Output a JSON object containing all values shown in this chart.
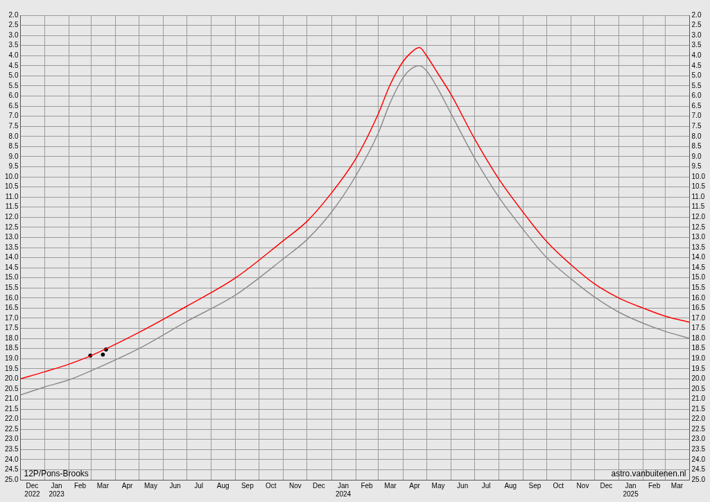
{
  "chart_data": {
    "type": "line",
    "annotations": [
      "12P/Pons-Brooks",
      "astro.vanbuitenen.nl"
    ],
    "xlim": [
      "2022-12-01",
      "2025-04-01"
    ],
    "xticks": [
      {
        "value": "2022-12-01",
        "label": null
      },
      {
        "value": "2022-12-16",
        "label": "Dec\n2022"
      },
      {
        "value": "2023-01-01",
        "label": null
      },
      {
        "value": "2023-01-16",
        "label": "Jan\n2023"
      },
      {
        "value": "2023-02-01",
        "label": null
      },
      {
        "value": "2023-02-15",
        "label": "Feb"
      },
      {
        "value": "2023-03-01",
        "label": null
      },
      {
        "value": "2023-03-16",
        "label": "Mar"
      },
      {
        "value": "2023-04-01",
        "label": null
      },
      {
        "value": "2023-04-16",
        "label": "Apr"
      },
      {
        "value": "2023-05-01",
        "label": null
      },
      {
        "value": "2023-05-16",
        "label": "May"
      },
      {
        "value": "2023-06-01",
        "label": null
      },
      {
        "value": "2023-06-16",
        "label": "Jun"
      },
      {
        "value": "2023-07-01",
        "label": null
      },
      {
        "value": "2023-07-16",
        "label": "Jul"
      },
      {
        "value": "2023-08-01",
        "label": null
      },
      {
        "value": "2023-08-16",
        "label": "Aug"
      },
      {
        "value": "2023-09-01",
        "label": null
      },
      {
        "value": "2023-09-16",
        "label": "Sep"
      },
      {
        "value": "2023-10-01",
        "label": null
      },
      {
        "value": "2023-10-16",
        "label": "Oct"
      },
      {
        "value": "2023-11-01",
        "label": null
      },
      {
        "value": "2023-11-16",
        "label": "Nov"
      },
      {
        "value": "2023-12-01",
        "label": null
      },
      {
        "value": "2023-12-16",
        "label": "Dec"
      },
      {
        "value": "2024-01-01",
        "label": null
      },
      {
        "value": "2024-01-16",
        "label": "Jan\n2024"
      },
      {
        "value": "2024-02-01",
        "label": null
      },
      {
        "value": "2024-02-15",
        "label": "Feb"
      },
      {
        "value": "2024-03-01",
        "label": null
      },
      {
        "value": "2024-03-16",
        "label": "Mar"
      },
      {
        "value": "2024-04-01",
        "label": null
      },
      {
        "value": "2024-04-16",
        "label": "Apr"
      },
      {
        "value": "2024-05-01",
        "label": null
      },
      {
        "value": "2024-05-16",
        "label": "May"
      },
      {
        "value": "2024-06-01",
        "label": null
      },
      {
        "value": "2024-06-16",
        "label": "Jun"
      },
      {
        "value": "2024-07-01",
        "label": null
      },
      {
        "value": "2024-07-16",
        "label": "Jul"
      },
      {
        "value": "2024-08-01",
        "label": null
      },
      {
        "value": "2024-08-16",
        "label": "Aug"
      },
      {
        "value": "2024-09-01",
        "label": null
      },
      {
        "value": "2024-09-16",
        "label": "Sep"
      },
      {
        "value": "2024-10-01",
        "label": null
      },
      {
        "value": "2024-10-16",
        "label": "Oct"
      },
      {
        "value": "2024-11-01",
        "label": null
      },
      {
        "value": "2024-11-16",
        "label": "Nov"
      },
      {
        "value": "2024-12-01",
        "label": null
      },
      {
        "value": "2024-12-16",
        "label": "Dec"
      },
      {
        "value": "2025-01-01",
        "label": null
      },
      {
        "value": "2025-01-16",
        "label": "Jan\n2025"
      },
      {
        "value": "2025-02-01",
        "label": null
      },
      {
        "value": "2025-02-15",
        "label": "Feb"
      },
      {
        "value": "2025-03-01",
        "label": null
      },
      {
        "value": "2025-03-16",
        "label": "Mar"
      },
      {
        "value": "2025-04-01",
        "label": null
      }
    ],
    "ylim": [
      25,
      2
    ],
    "yticks": [
      {
        "value": 2,
        "label": "2.0"
      },
      {
        "value": 2.5,
        "label": "2.5"
      },
      {
        "value": 3,
        "label": "3.0"
      },
      {
        "value": 3.5,
        "label": "3.5"
      },
      {
        "value": 4,
        "label": "4.0"
      },
      {
        "value": 4.5,
        "label": "4.5"
      },
      {
        "value": 5,
        "label": "5.0"
      },
      {
        "value": 5.5,
        "label": "5.5"
      },
      {
        "value": 6,
        "label": "6.0"
      },
      {
        "value": 6.5,
        "label": "6.5"
      },
      {
        "value": 7,
        "label": "7.0"
      },
      {
        "value": 7.5,
        "label": "7.5"
      },
      {
        "value": 8,
        "label": "8.0"
      },
      {
        "value": 8.5,
        "label": "8.5"
      },
      {
        "value": 9,
        "label": "9.0"
      },
      {
        "value": 9.5,
        "label": "9.5"
      },
      {
        "value": 10,
        "label": "10.0"
      },
      {
        "value": 10.5,
        "label": "10.5"
      },
      {
        "value": 11,
        "label": "11.0"
      },
      {
        "value": 11.5,
        "label": "11.5"
      },
      {
        "value": 12,
        "label": "12.0"
      },
      {
        "value": 12.5,
        "label": "12.5"
      },
      {
        "value": 13,
        "label": "13.0"
      },
      {
        "value": 13.5,
        "label": "13.5"
      },
      {
        "value": 14,
        "label": "14.0"
      },
      {
        "value": 14.5,
        "label": "14.5"
      },
      {
        "value": 15,
        "label": "15.0"
      },
      {
        "value": 15.5,
        "label": "15.5"
      },
      {
        "value": 16,
        "label": "16.0"
      },
      {
        "value": 16.5,
        "label": "16.5"
      },
      {
        "value": 17,
        "label": "17.0"
      },
      {
        "value": 17.5,
        "label": "17.5"
      },
      {
        "value": 18,
        "label": "18.0"
      },
      {
        "value": 18.5,
        "label": "18.5"
      },
      {
        "value": 19,
        "label": "19.0"
      },
      {
        "value": 19.5,
        "label": "19.5"
      },
      {
        "value": 20,
        "label": "20.0"
      },
      {
        "value": 20.5,
        "label": "20.5"
      },
      {
        "value": 21,
        "label": "21.0"
      },
      {
        "value": 21.5,
        "label": "21.5"
      },
      {
        "value": 22,
        "label": "22.0"
      },
      {
        "value": 22.5,
        "label": "22.5"
      },
      {
        "value": 23,
        "label": "23.0"
      },
      {
        "value": 23.5,
        "label": "23.5"
      },
      {
        "value": 24,
        "label": "24.0"
      },
      {
        "value": 24.5,
        "label": "24.5"
      },
      {
        "value": 25,
        "label": "25.0"
      }
    ],
    "y2lim": [
      25,
      2
    ],
    "y2ticks": [
      {
        "value": 2,
        "label": "2.0"
      },
      {
        "value": 2.5,
        "label": "2.5"
      },
      {
        "value": 3,
        "label": "3.0"
      },
      {
        "value": 3.5,
        "label": "3.5"
      },
      {
        "value": 4,
        "label": "4.0"
      },
      {
        "value": 4.5,
        "label": "4.5"
      },
      {
        "value": 5,
        "label": "5.0"
      },
      {
        "value": 5.5,
        "label": "5.5"
      },
      {
        "value": 6,
        "label": "6.0"
      },
      {
        "value": 6.5,
        "label": "6.5"
      },
      {
        "value": 7,
        "label": "7.0"
      },
      {
        "value": 7.5,
        "label": "7.5"
      },
      {
        "value": 8,
        "label": "8.0"
      },
      {
        "value": 8.5,
        "label": "8.5"
      },
      {
        "value": 9,
        "label": "9.0"
      },
      {
        "value": 9.5,
        "label": "9.5"
      },
      {
        "value": 10,
        "label": "10.0"
      },
      {
        "value": 10.5,
        "label": "10.5"
      },
      {
        "value": 11,
        "label": "11.0"
      },
      {
        "value": 11.5,
        "label": "11.5"
      },
      {
        "value": 12,
        "label": "12.0"
      },
      {
        "value": 12.5,
        "label": "12.5"
      },
      {
        "value": 13,
        "label": "13.0"
      },
      {
        "value": 13.5,
        "label": "13.5"
      },
      {
        "value": 14,
        "label": "14.0"
      },
      {
        "value": 14.5,
        "label": "14.5"
      },
      {
        "value": 15,
        "label": "15.0"
      },
      {
        "value": 15.5,
        "label": "15.5"
      },
      {
        "value": 16,
        "label": "16.0"
      },
      {
        "value": 16.5,
        "label": "16.5"
      },
      {
        "value": 17,
        "label": "17.0"
      },
      {
        "value": 17.5,
        "label": "17.5"
      },
      {
        "value": 18,
        "label": "18.0"
      },
      {
        "value": 18.5,
        "label": "18.5"
      },
      {
        "value": 19,
        "label": "19.0"
      },
      {
        "value": 19.5,
        "label": "19.5"
      },
      {
        "value": 20,
        "label": "20.0"
      },
      {
        "value": 20.5,
        "label": "20.5"
      },
      {
        "value": 21,
        "label": "21.0"
      },
      {
        "value": 21.5,
        "label": "21.5"
      },
      {
        "value": 22,
        "label": "22.0"
      },
      {
        "value": 22.5,
        "label": "22.5"
      },
      {
        "value": 23,
        "label": "23.0"
      },
      {
        "value": 23.5,
        "label": "23.5"
      },
      {
        "value": 24,
        "label": "24.0"
      },
      {
        "value": 24.5,
        "label": "24.5"
      },
      {
        "value": 25,
        "label": "25.0"
      }
    ],
    "grid": true,
    "legend": false,
    "marker": "none",
    "series": [
      {
        "color": "#ff0000",
        "x": [
          "2022-12-01",
          "2023-01-01",
          "2023-02-01",
          "2023-03-01",
          "2023-05-01",
          "2023-07-01",
          "2023-09-01",
          "2023-11-01",
          "2023-12-01",
          "2024-01-01",
          "2024-02-01",
          "2024-03-01",
          "2024-03-15",
          "2024-04-01",
          "2024-04-10",
          "2024-04-22",
          "2024-05-01",
          "2024-05-15",
          "2024-06-01",
          "2024-07-01",
          "2024-08-01",
          "2024-09-01",
          "2024-10-01",
          "2024-11-01",
          "2024-12-01",
          "2025-01-01",
          "2025-02-01",
          "2025-03-01",
          "2025-04-01"
        ],
        "values": [
          20.0,
          19.65,
          19.27,
          18.85,
          17.7,
          16.4,
          15.0,
          13.15,
          12.2,
          10.8,
          9.1,
          6.85,
          5.5,
          4.3,
          3.9,
          3.6,
          4.0,
          4.85,
          5.9,
          8.1,
          10.1,
          11.75,
          13.2,
          14.35,
          15.3,
          16.0,
          16.5,
          16.9,
          17.2
        ]
      },
      {
        "color": "#8c8c8c",
        "x": [
          "2022-12-01",
          "2023-01-01",
          "2023-02-01",
          "2023-03-01",
          "2023-05-01",
          "2023-07-01",
          "2023-09-01",
          "2023-11-01",
          "2023-12-01",
          "2024-01-01",
          "2024-02-01",
          "2024-03-01",
          "2024-03-15",
          "2024-04-01",
          "2024-04-10",
          "2024-04-22",
          "2024-05-01",
          "2024-05-15",
          "2024-06-01",
          "2024-07-01",
          "2024-08-01",
          "2024-09-01",
          "2024-10-01",
          "2024-11-01",
          "2024-12-01",
          "2025-01-01",
          "2025-02-01",
          "2025-03-01",
          "2025-04-01"
        ],
        "values": [
          20.8,
          20.4,
          20.05,
          19.6,
          18.5,
          17.15,
          15.85,
          14.05,
          13.1,
          11.75,
          9.95,
          7.8,
          6.4,
          5.1,
          4.7,
          4.5,
          4.75,
          5.6,
          6.85,
          9.05,
          11.0,
          12.6,
          14.0,
          15.05,
          15.95,
          16.7,
          17.25,
          17.65,
          18.0
        ]
      },
      {
        "type": "scatter",
        "marker": "circle",
        "color": "#000000",
        "x": [
          "2023-02-28",
          "2023-03-16",
          "2023-03-20"
        ],
        "values": [
          18.85,
          18.8,
          18.55
        ]
      }
    ]
  }
}
